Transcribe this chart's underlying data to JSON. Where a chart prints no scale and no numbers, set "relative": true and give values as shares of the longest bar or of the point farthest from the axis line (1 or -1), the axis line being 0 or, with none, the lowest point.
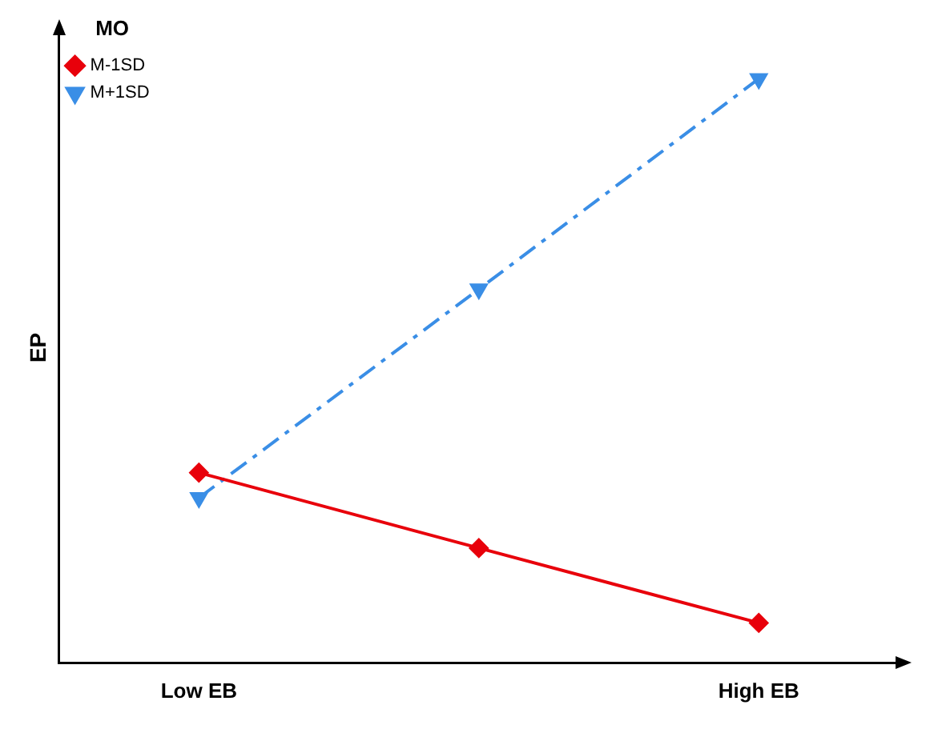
{
  "chart_data": {
    "type": "line",
    "relative": true,
    "xlabel": null,
    "ylabel": "EP",
    "legend_title": "MO",
    "legend": "top left",
    "grid": false,
    "categories": [
      "Low EB",
      null,
      "High EB"
    ],
    "series": [
      {
        "name": "M-1SD",
        "color": "#e8000b",
        "values": [
          0.326,
          0.197,
          0.069
        ],
        "marker": "diamond",
        "line_style": "solid"
      },
      {
        "name": "M+1SD",
        "color": "#3a8ee6",
        "values": [
          0.283,
          0.64,
          1
        ],
        "marker": "triangle",
        "line_style": "dashed"
      }
    ]
  }
}
